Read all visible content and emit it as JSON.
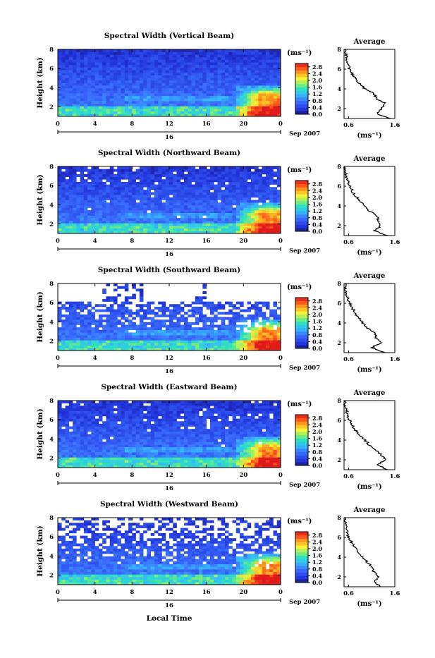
{
  "figure": {
    "xlabel": "Local Time",
    "date_label": "Sep 2007",
    "day_label": "16",
    "ylabel": "Height (km)",
    "colorbar_unit": "(ms⁻¹)",
    "avg_title": "Average",
    "avg_xlabel": "(ms⁻¹)"
  },
  "chart_data": [
    {
      "type": "heatmap",
      "title": "Spectral Width (Vertical Beam)",
      "xlabel": "",
      "ylabel": "Height (km)",
      "xlim": [
        0,
        24
      ],
      "ylim": [
        1,
        8
      ],
      "xticks": [
        "0",
        "4",
        "8",
        "12",
        "16",
        "20",
        "0"
      ],
      "yticks": [
        "2",
        "4",
        "6",
        "8"
      ],
      "colorbar": {
        "ticks": [
          "0.0",
          "0.4",
          "0.8",
          "1.2",
          "1.6",
          "2.0",
          "2.4",
          "2.8"
        ],
        "range": [
          0,
          3.0
        ]
      },
      "sparse": 0.0,
      "average_profile": {
        "title": "Average",
        "xticks": [
          "0.6",
          "1.6"
        ],
        "xlim": [
          0.5,
          1.6
        ],
        "ylim": [
          1,
          8
        ],
        "yticks": [
          "2",
          "4",
          "6",
          "8"
        ],
        "height": [
          1.0,
          1.5,
          2.0,
          2.5,
          3.0,
          3.5,
          4.0,
          4.5,
          5.0,
          5.5,
          6.0,
          6.5,
          7.0,
          7.5,
          8.0
        ],
        "width": [
          1.5,
          1.2,
          1.3,
          1.4,
          1.2,
          1.15,
          0.95,
          0.85,
          0.75,
          0.68,
          0.62,
          0.58,
          0.55,
          0.55,
          0.52
        ]
      }
    },
    {
      "type": "heatmap",
      "title": "Spectral Width (Northward Beam)",
      "xlabel": "",
      "ylabel": "Height (km)",
      "xlim": [
        0,
        24
      ],
      "ylim": [
        1,
        8
      ],
      "xticks": [
        "0",
        "4",
        "8",
        "12",
        "16",
        "20",
        "0"
      ],
      "yticks": [
        "2",
        "4",
        "6",
        "8"
      ],
      "colorbar": {
        "ticks": [
          "0.0",
          "0.4",
          "0.8",
          "1.2",
          "1.6",
          "2.0",
          "2.4",
          "2.8"
        ],
        "range": [
          0,
          3.0
        ]
      },
      "sparse": 0.05,
      "average_profile": {
        "title": "Average",
        "xticks": [
          "0.6",
          "1.6"
        ],
        "xlim": [
          0.5,
          1.6
        ],
        "ylim": [
          1,
          8
        ],
        "yticks": [
          "2",
          "4",
          "6",
          "8"
        ],
        "height": [
          1.0,
          1.5,
          2.0,
          2.5,
          3.0,
          3.5,
          4.0,
          4.5,
          5.0,
          5.5,
          6.0,
          6.5,
          7.0,
          7.5,
          8.0
        ],
        "width": [
          1.45,
          1.15,
          1.3,
          1.25,
          1.2,
          1.05,
          0.95,
          0.85,
          0.75,
          0.68,
          0.62,
          0.58,
          0.55,
          0.52,
          0.52
        ]
      }
    },
    {
      "type": "heatmap",
      "title": "Spectral Width (Southward Beam)",
      "xlabel": "",
      "ylabel": "Height (km)",
      "xlim": [
        0,
        24
      ],
      "ylim": [
        1,
        8
      ],
      "xticks": [
        "0",
        "4",
        "8",
        "12",
        "16",
        "20",
        "0"
      ],
      "yticks": [
        "2",
        "4",
        "6",
        "8"
      ],
      "colorbar": {
        "ticks": [
          "0.0",
          "0.4",
          "0.8",
          "1.2",
          "1.6",
          "2.0",
          "2.4",
          "2.8"
        ],
        "range": [
          0,
          3.0
        ]
      },
      "sparse": 0.35,
      "average_profile": {
        "title": "Average",
        "xticks": [
          "0.6",
          "1.6"
        ],
        "xlim": [
          0.5,
          1.6
        ],
        "ylim": [
          1,
          8
        ],
        "yticks": [
          "2",
          "4",
          "6",
          "8"
        ],
        "height": [
          1.0,
          1.5,
          2.0,
          2.5,
          3.0,
          3.5,
          4.0,
          4.5,
          5.0,
          5.5,
          6.0,
          6.5,
          7.0,
          7.5,
          8.0
        ],
        "width": [
          1.4,
          1.1,
          1.3,
          1.2,
          1.15,
          1.0,
          0.9,
          0.82,
          0.75,
          0.68,
          0.62,
          0.58,
          0.55,
          0.52,
          0.52
        ]
      }
    },
    {
      "type": "heatmap",
      "title": "Spectral Width (Eastward Beam)",
      "xlabel": "",
      "ylabel": "Height (km)",
      "xlim": [
        0,
        24
      ],
      "ylim": [
        1,
        8
      ],
      "xticks": [
        "0",
        "4",
        "8",
        "12",
        "16",
        "20",
        "0"
      ],
      "yticks": [
        "2",
        "4",
        "6",
        "8"
      ],
      "colorbar": {
        "ticks": [
          "0.0",
          "0.4",
          "0.8",
          "1.2",
          "1.6",
          "2.0",
          "2.4",
          "2.8"
        ],
        "range": [
          0,
          3.0
        ]
      },
      "sparse": 0.04,
      "average_profile": {
        "title": "Average",
        "xticks": [
          "0.6",
          "1.6"
        ],
        "xlim": [
          0.5,
          1.6
        ],
        "ylim": [
          1,
          8
        ],
        "yticks": [
          "2",
          "4",
          "6",
          "8"
        ],
        "height": [
          1.0,
          1.5,
          2.0,
          2.5,
          3.0,
          3.5,
          4.0,
          4.5,
          5.0,
          5.5,
          6.0,
          6.5,
          7.0,
          7.5,
          8.0
        ],
        "width": [
          1.45,
          1.2,
          1.4,
          1.3,
          1.2,
          1.05,
          0.95,
          0.85,
          0.75,
          0.68,
          0.62,
          0.58,
          0.55,
          0.52,
          0.52
        ]
      }
    },
    {
      "type": "heatmap",
      "title": "Spectral Width (Westward Beam)",
      "xlabel": "Local Time",
      "ylabel": "Height (km)",
      "xlim": [
        0,
        24
      ],
      "ylim": [
        1,
        8
      ],
      "xticks": [
        "0",
        "4",
        "8",
        "12",
        "16",
        "20",
        "0"
      ],
      "yticks": [
        "2",
        "4",
        "6",
        "8"
      ],
      "colorbar": {
        "ticks": [
          "0.0",
          "0.4",
          "0.8",
          "1.2",
          "1.6",
          "2.0",
          "2.4",
          "2.8"
        ],
        "range": [
          0,
          3.0
        ]
      },
      "sparse": 0.28,
      "average_profile": {
        "title": "Average",
        "xticks": [
          "0.6",
          "1.6"
        ],
        "xlim": [
          0.5,
          1.6
        ],
        "ylim": [
          1,
          8
        ],
        "yticks": [
          "2",
          "4",
          "6",
          "8"
        ],
        "height": [
          1.0,
          1.5,
          2.0,
          2.5,
          3.0,
          3.5,
          4.0,
          4.5,
          5.0,
          5.5,
          6.0,
          6.5,
          7.0,
          7.5,
          8.0
        ],
        "width": [
          1.3,
          1.15,
          1.25,
          1.15,
          1.1,
          1.0,
          0.9,
          0.8,
          0.72,
          0.66,
          0.6,
          0.56,
          0.55,
          0.52,
          0.52
        ]
      }
    }
  ]
}
